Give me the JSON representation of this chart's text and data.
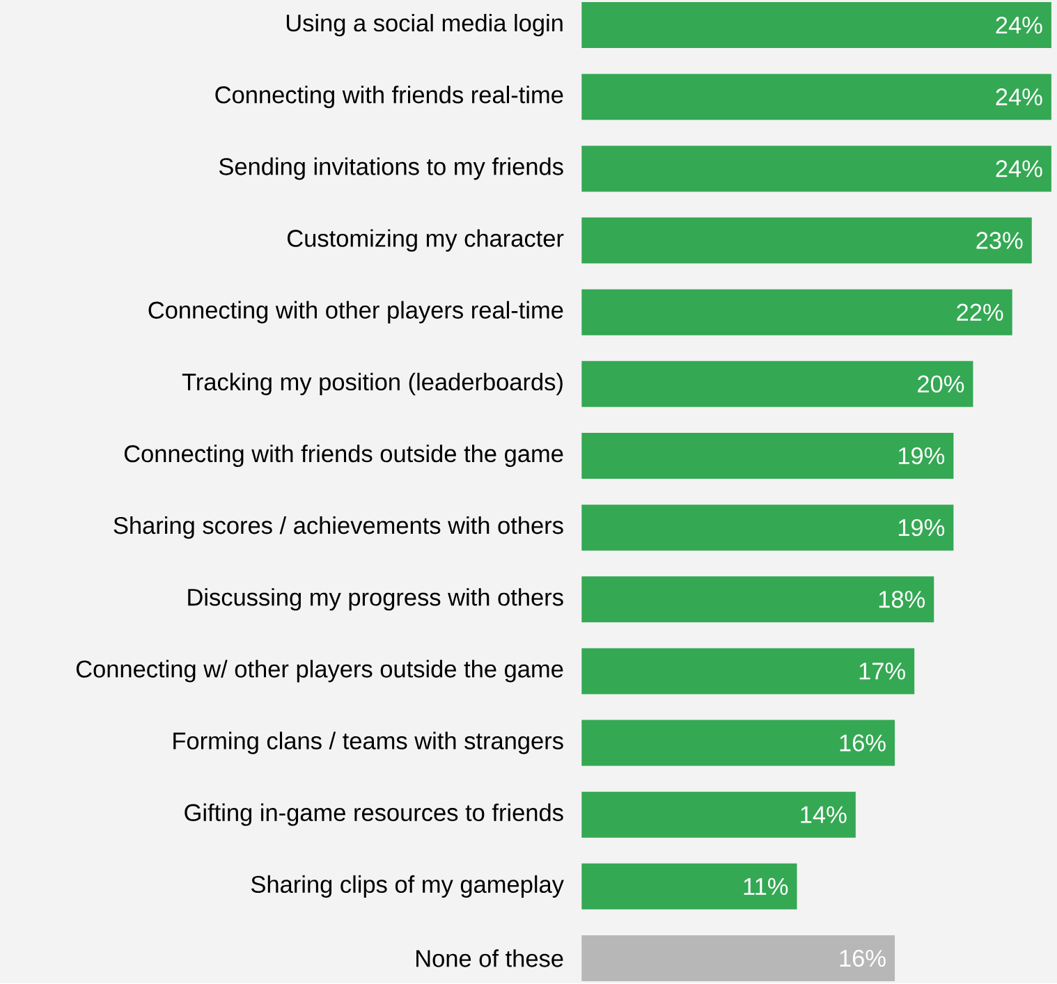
{
  "chart_data": {
    "type": "bar",
    "orientation": "horizontal",
    "categories": [
      "Using a social media login",
      "Connecting with friends real-time",
      "Sending invitations to my friends",
      "Customizing my character",
      "Connecting with other players real-time",
      "Tracking my position (leaderboards)",
      "Connecting with friends outside the game",
      "Sharing scores / achievements with others",
      "Discussing my progress with others",
      "Connecting w/ other players outside the game",
      "Forming clans / teams with strangers",
      "Gifting in-game resources to friends",
      "Sharing clips of my gameplay",
      "None of these"
    ],
    "values": [
      24,
      24,
      24,
      23,
      22,
      20,
      19,
      19,
      18,
      17,
      16,
      14,
      11,
      16
    ],
    "value_labels": [
      "24%",
      "24%",
      "24%",
      "23%",
      "22%",
      "20%",
      "19%",
      "19%",
      "18%",
      "17%",
      "16%",
      "14%",
      "11%",
      "16%"
    ],
    "colors": [
      "#34a853",
      "#34a853",
      "#34a853",
      "#34a853",
      "#34a853",
      "#34a853",
      "#34a853",
      "#34a853",
      "#34a853",
      "#34a853",
      "#34a853",
      "#34a853",
      "#34a853",
      "#b7b7b7"
    ]
  }
}
